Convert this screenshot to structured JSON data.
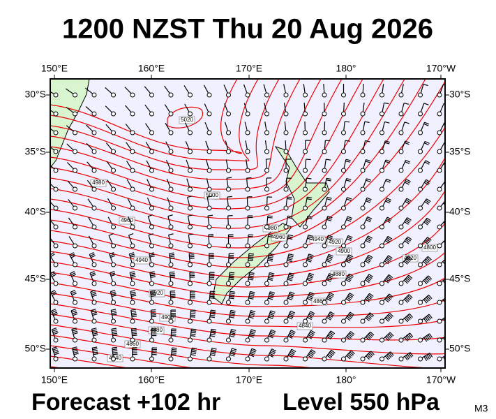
{
  "header": {
    "title": "1200 NZST Thu 20 Aug 2026"
  },
  "footer": {
    "forecast": "Forecast +102 hr",
    "level": "Level 550 hPa",
    "code": "M3"
  },
  "map": {
    "longitude_labels": [
      "150°E",
      "160°E",
      "170°E",
      "180°",
      "170°W"
    ],
    "latitude_labels": [
      "30°S",
      "35°S",
      "40°S",
      "45°S",
      "50°S"
    ],
    "contour_labels": [
      "5020",
      "5000",
      "4980",
      "4960",
      "4940",
      "4920",
      "4900",
      "4880",
      "4860",
      "4840",
      "4980",
      "4960",
      "4940",
      "4920",
      "4900",
      "4880",
      "4860",
      "4840",
      "4820",
      "4800"
    ]
  }
}
